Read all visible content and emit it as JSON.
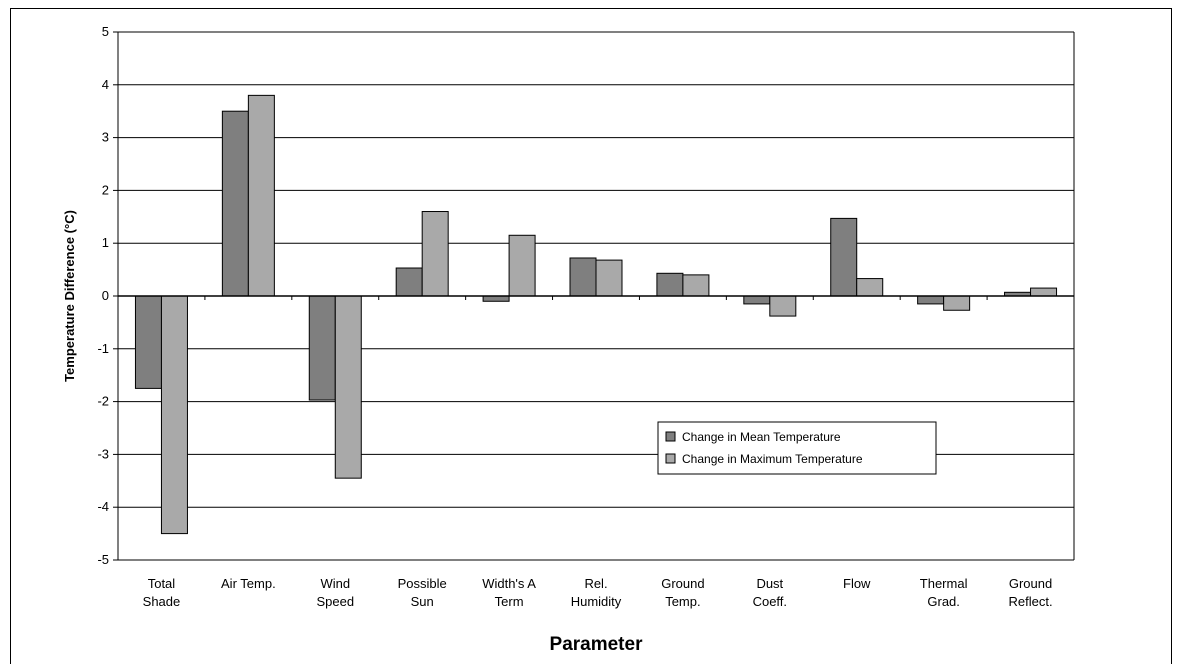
{
  "chart_data": {
    "type": "bar",
    "title": "",
    "xlabel": "Parameter",
    "ylabel": "Temperature Difference (°C)",
    "ylim": [
      -5,
      5
    ],
    "yticks": [
      5,
      4,
      3,
      2,
      1,
      0,
      -1,
      -2,
      -3,
      -4,
      -5
    ],
    "grid": true,
    "legend_position": "lower-right",
    "categories": [
      [
        "Total",
        "Shade"
      ],
      [
        "Air Temp."
      ],
      [
        "Wind",
        "Speed"
      ],
      [
        "Possible",
        "Sun"
      ],
      [
        "Width's A",
        "Term"
      ],
      [
        "Rel.",
        "Humidity"
      ],
      [
        "Ground",
        "Temp."
      ],
      [
        "Dust",
        "Coeff."
      ],
      [
        "Flow"
      ],
      [
        "Thermal",
        "Grad."
      ],
      [
        "Ground",
        "Reflect."
      ]
    ],
    "series": [
      {
        "name": "Change in Mean Temperature",
        "color": "#7f7f7f",
        "values": [
          -1.75,
          3.5,
          -1.97,
          0.53,
          -0.1,
          0.72,
          0.43,
          -0.15,
          1.47,
          -0.15,
          0.07
        ]
      },
      {
        "name": "Change in Maximum Temperature",
        "color": "#a9a9a9",
        "values": [
          -4.5,
          3.8,
          -3.45,
          1.6,
          1.15,
          0.68,
          0.4,
          -0.38,
          0.33,
          -0.27,
          0.15
        ]
      }
    ]
  }
}
